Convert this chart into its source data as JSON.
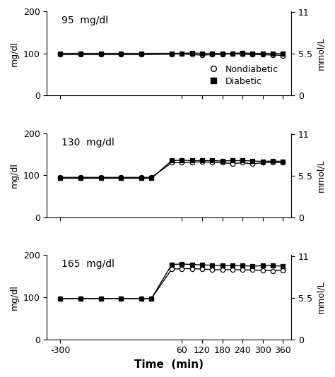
{
  "panels": [
    {
      "label": "95  mg/dl",
      "nondiabetic": {
        "x": [
          -300,
          -240,
          -180,
          -120,
          -60,
          30,
          60,
          90,
          120,
          150,
          180,
          210,
          240,
          270,
          300,
          330,
          360
        ],
        "y": [
          97,
          97,
          97,
          97,
          97,
          98,
          99,
          97,
          96,
          97,
          98,
          99,
          98,
          97,
          97,
          96,
          95
        ]
      },
      "diabetic": {
        "x": [
          -300,
          -240,
          -180,
          -120,
          -60,
          30,
          60,
          90,
          120,
          150,
          180,
          210,
          240,
          270,
          300,
          330,
          360
        ],
        "y": [
          100,
          100,
          100,
          100,
          100,
          100,
          100,
          101,
          100,
          100,
          99,
          100,
          101,
          100,
          100,
          100,
          99
        ]
      },
      "show_legend": true
    },
    {
      "label": "130  mg/dl",
      "nondiabetic": {
        "x": [
          -300,
          -240,
          -180,
          -120,
          -60,
          -30,
          30,
          60,
          90,
          120,
          150,
          180,
          210,
          240,
          270,
          300,
          330,
          360
        ],
        "y": [
          95,
          95,
          95,
          95,
          95,
          95,
          130,
          130,
          131,
          132,
          131,
          130,
          128,
          130,
          127,
          130,
          131,
          130
        ]
      },
      "diabetic": {
        "x": [
          -300,
          -240,
          -180,
          -120,
          -60,
          -30,
          30,
          60,
          90,
          120,
          150,
          180,
          210,
          240,
          270,
          300,
          330,
          360
        ],
        "y": [
          93,
          93,
          93,
          93,
          93,
          93,
          135,
          136,
          135,
          135,
          135,
          134,
          135,
          135,
          134,
          133,
          134,
          133
        ]
      },
      "show_legend": false
    },
    {
      "label": "165  mg/dl",
      "nondiabetic": {
        "x": [
          -300,
          -240,
          -180,
          -120,
          -60,
          -30,
          30,
          60,
          90,
          120,
          150,
          180,
          210,
          240,
          270,
          300,
          330,
          360
        ],
        "y": [
          97,
          97,
          97,
          97,
          97,
          97,
          167,
          168,
          168,
          167,
          166,
          165,
          166,
          165,
          165,
          164,
          163,
          164
        ]
      },
      "diabetic": {
        "x": [
          -300,
          -240,
          -180,
          -120,
          -60,
          -30,
          30,
          60,
          90,
          120,
          150,
          180,
          210,
          240,
          270,
          300,
          330,
          360
        ],
        "y": [
          97,
          97,
          97,
          97,
          97,
          97,
          178,
          179,
          178,
          177,
          176,
          175,
          175,
          175,
          174,
          175,
          175,
          174
        ]
      },
      "show_legend": false
    }
  ],
  "ylim": [
    0,
    200
  ],
  "yticks_left": [
    0,
    100,
    200
  ],
  "yticks_right_vals": [
    0,
    5.5,
    11
  ],
  "xticks": [
    -300,
    60,
    120,
    180,
    240,
    300,
    360
  ],
  "xlim": [
    -340,
    385
  ],
  "xlabel": "Time  (min)",
  "left_ylabel": "mg/dl",
  "right_ylabel": "mmol/L",
  "conversion_factor": 18.0,
  "line_color": "black",
  "background_color": "white",
  "marker_size": 4.5,
  "line_width": 1.0,
  "tick_fontsize": 9,
  "label_fontsize": 10,
  "legend_fontsize": 9
}
